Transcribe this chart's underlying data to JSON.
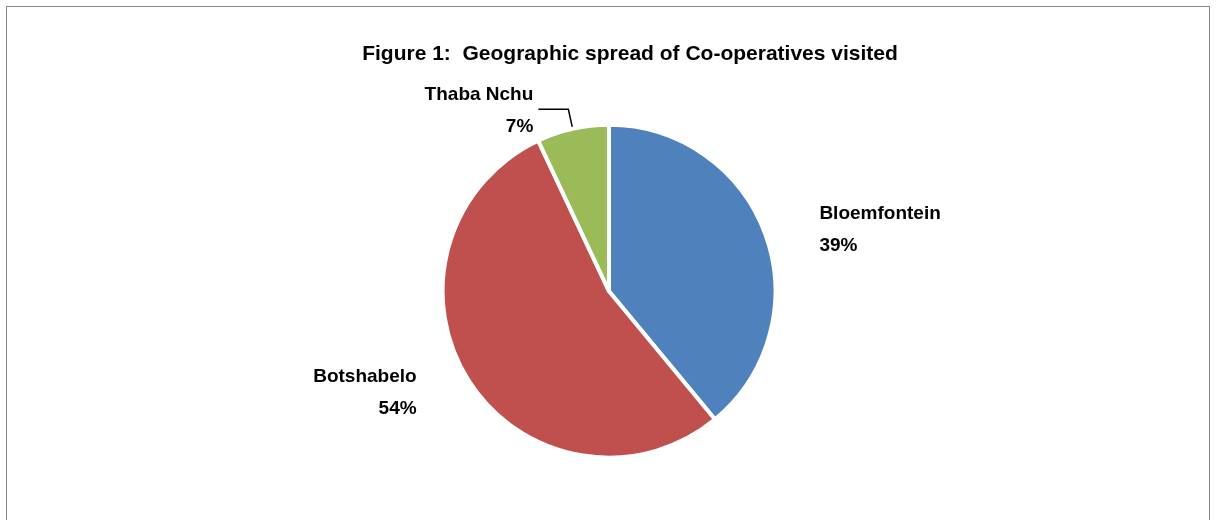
{
  "chart_data": {
    "type": "pie",
    "title": "Figure 1:  Geographic spread of Co-operatives visited",
    "categories": [
      "Bloemfontein",
      "Botshabelo",
      "Thaba Nchu"
    ],
    "values": [
      39,
      54,
      7
    ],
    "colors": [
      "#4f81bd",
      "#c0504d",
      "#9bbb59"
    ],
    "value_labels": [
      "39%",
      "54%",
      "7%"
    ],
    "legend": false
  }
}
